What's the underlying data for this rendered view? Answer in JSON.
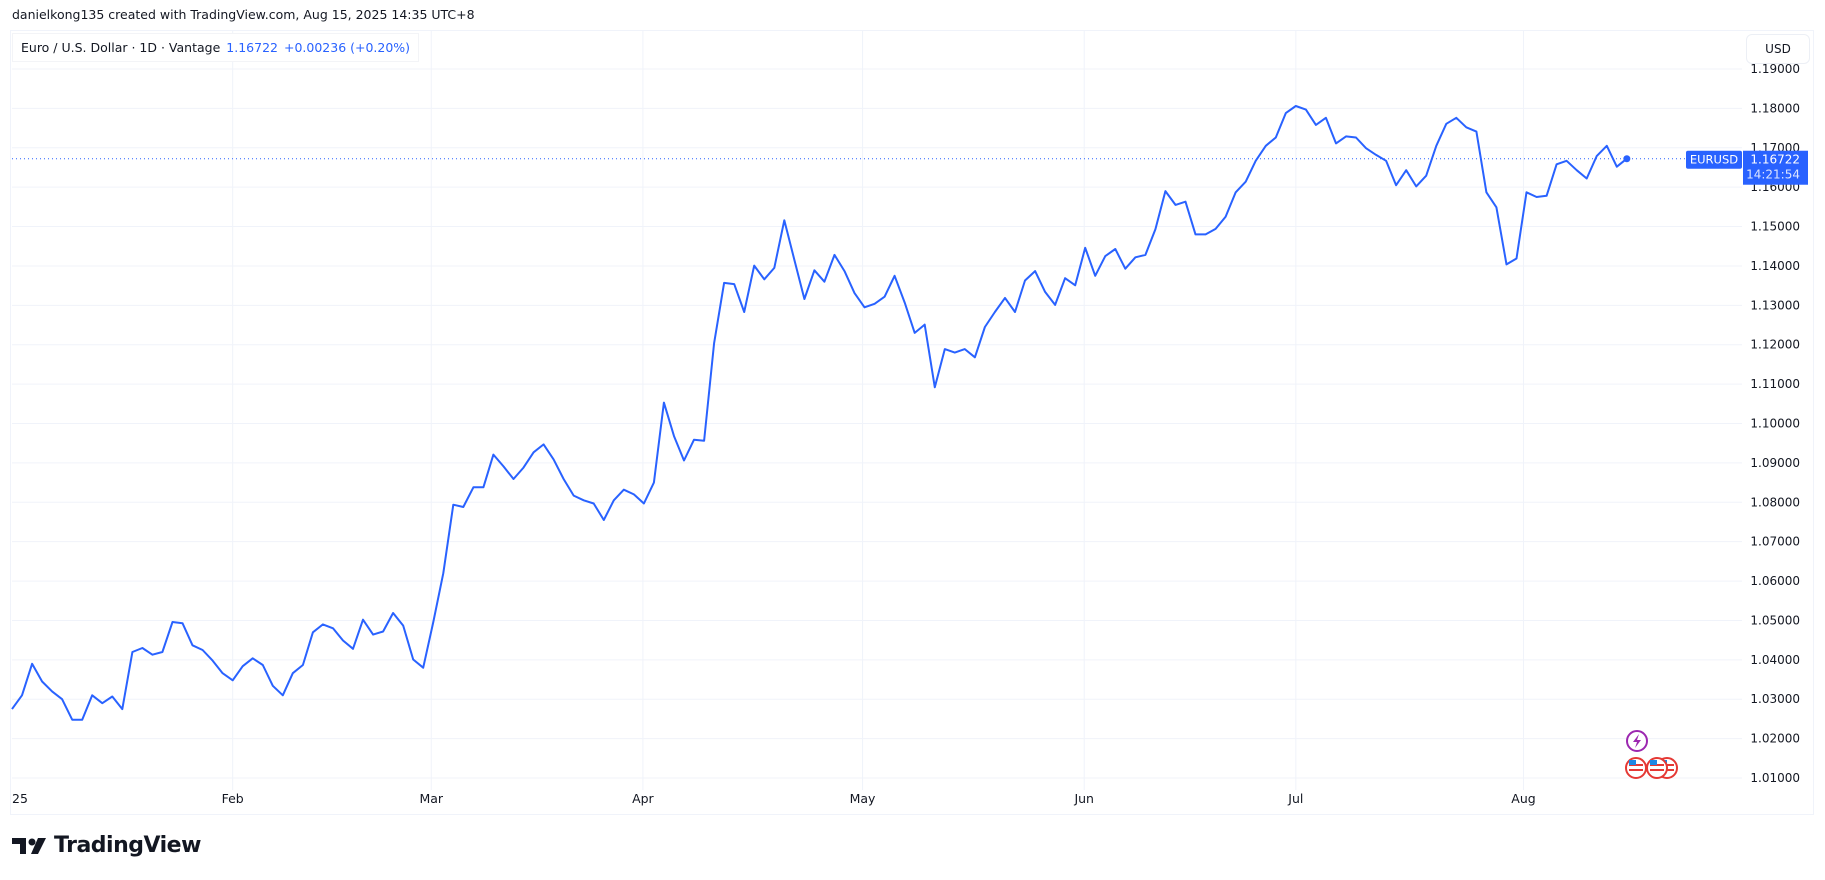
{
  "header": {
    "credit": "danielkong135 created with TradingView.com, Aug 15, 2025 14:35 UTC+8"
  },
  "legend": {
    "symbol": "Euro / U.S. Dollar · 1D · Vantage",
    "last": "1.16722",
    "change": "+0.00236 (+0.20%)"
  },
  "currency_button": "USD",
  "price_label": {
    "symbol": "EURUSD",
    "price": "1.16722",
    "countdown": "14:21:54"
  },
  "logo": "TradingView",
  "colors": {
    "line": "#2962ff",
    "grid": "#f0f3fa",
    "text": "#131722",
    "event": "#9c27b0",
    "flag_red": "#e53935"
  },
  "event_icons": [
    "lightning-icon",
    "us-flag-icon",
    "us-flag-icon",
    "us-flag-icon"
  ],
  "chart_data": {
    "type": "line",
    "title": "Euro / U.S. Dollar · 1D · Vantage",
    "ylim": [
      1.005,
      1.193
    ],
    "y_ticks": [
      "1.19000",
      "1.18000",
      "1.17000",
      "1.16000",
      "1.15000",
      "1.14000",
      "1.13000",
      "1.12000",
      "1.11000",
      "1.10000",
      "1.09000",
      "1.08000",
      "1.07000",
      "1.06000",
      "1.05000",
      "1.04000",
      "1.03000",
      "1.02000",
      "1.01000"
    ],
    "x_ticks": [
      {
        "label": "25",
        "index": 0.5
      },
      {
        "label": "Feb",
        "index": 22
      },
      {
        "label": "Mar",
        "index": 41.8
      },
      {
        "label": "Apr",
        "index": 62.9
      },
      {
        "label": "May",
        "index": 84.8
      },
      {
        "label": "Jun",
        "index": 106.9
      },
      {
        "label": "Jul",
        "index": 128
      },
      {
        "label": "Aug",
        "index": 150.7
      }
    ],
    "grid": true,
    "last_value": 1.16722,
    "series": [
      {
        "values": [
          1.0275,
          1.031,
          1.039,
          1.0345,
          1.032,
          1.03,
          1.0248,
          1.0248,
          1.031,
          1.029,
          1.0307,
          1.0275,
          1.042,
          1.043,
          1.0413,
          1.042,
          1.0496,
          1.0493,
          1.0437,
          1.0425,
          1.0398,
          1.0366,
          1.0348,
          1.0384,
          1.0404,
          1.0387,
          1.0334,
          1.031,
          1.0366,
          1.0387,
          1.047,
          1.049,
          1.048,
          1.0449,
          1.0428,
          1.0502,
          1.0464,
          1.0472,
          1.0519,
          1.0487,
          1.0401,
          1.038,
          1.0496,
          1.062,
          1.0794,
          1.0788,
          1.0838,
          1.0838,
          1.0921,
          1.0891,
          1.0859,
          1.0888,
          1.0927,
          1.0947,
          1.0909,
          1.0859,
          1.0817,
          1.0805,
          1.0797,
          1.0755,
          1.0805,
          1.0832,
          1.082,
          1.0797,
          1.085,
          1.1053,
          1.0968,
          1.0906,
          1.0959,
          1.0956,
          1.1204,
          1.1357,
          1.1354,
          1.1283,
          1.1401,
          1.1366,
          1.1395,
          1.1516,
          1.1416,
          1.1316,
          1.1389,
          1.136,
          1.1428,
          1.1387,
          1.1331,
          1.1295,
          1.1304,
          1.1322,
          1.1375,
          1.1307,
          1.123,
          1.1251,
          1.1092,
          1.1189,
          1.118,
          1.1189,
          1.1168,
          1.1245,
          1.1283,
          1.1319,
          1.1283,
          1.1363,
          1.1387,
          1.1334,
          1.1301,
          1.1369,
          1.1351,
          1.1446,
          1.1375,
          1.1425,
          1.1443,
          1.1393,
          1.1422,
          1.1428,
          1.1493,
          1.159,
          1.1555,
          1.1563,
          1.148,
          1.148,
          1.1494,
          1.1525,
          1.1587,
          1.1614,
          1.1667,
          1.1705,
          1.1726,
          1.1788,
          1.1806,
          1.1797,
          1.1758,
          1.1776,
          1.1711,
          1.1729,
          1.1726,
          1.1699,
          1.1682,
          1.1667,
          1.1605,
          1.1643,
          1.1602,
          1.1629,
          1.1705,
          1.1761,
          1.1776,
          1.1752,
          1.1741,
          1.1587,
          1.1549,
          1.1404,
          1.1419,
          1.1587,
          1.1575,
          1.1578,
          1.1658,
          1.1667,
          1.1643,
          1.1622,
          1.1679,
          1.1705,
          1.1652,
          1.16722
        ]
      }
    ]
  }
}
